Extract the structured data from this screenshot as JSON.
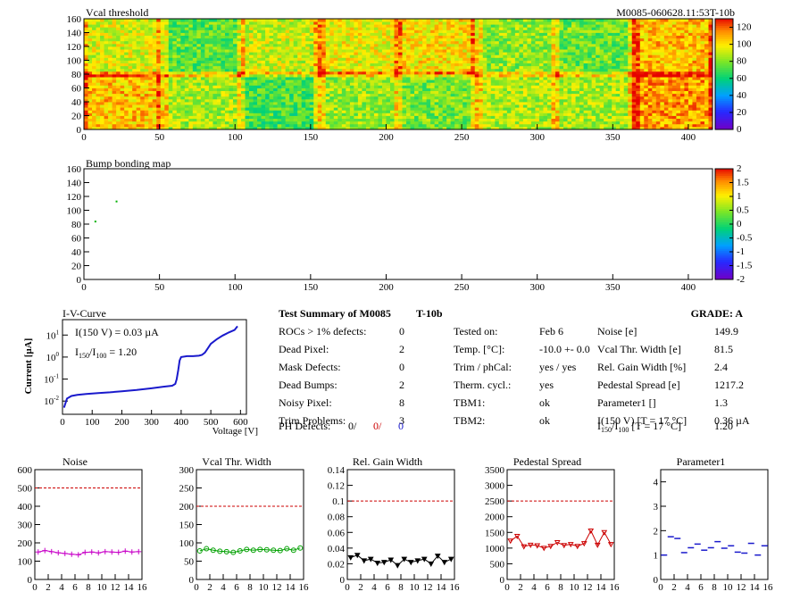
{
  "header": {
    "left": "Vcal threshold",
    "right": "M0085-060628.11:53T-10b"
  },
  "colors": {
    "blue": "#1a1acc",
    "red": "#cc0000",
    "magenta": "#c800c8",
    "green": "#00a000",
    "black": "#000000"
  },
  "chart_data": [
    {
      "id": "vcal",
      "type": "heatmap",
      "title": "Vcal threshold",
      "xlim": [
        0,
        416
      ],
      "ylim": [
        0,
        160
      ],
      "xticks": [
        "0",
        "50",
        "100",
        "150",
        "200",
        "250",
        "300",
        "350",
        "400"
      ],
      "yticks": [
        "0",
        "20",
        "40",
        "60",
        "80",
        "100",
        "120",
        "140",
        "160"
      ],
      "zticks": [
        "0",
        "20",
        "40",
        "60",
        "80",
        "100",
        "120"
      ],
      "zlim": [
        0,
        130
      ],
      "grid_rows": [
        [
          92,
          74,
          90,
          95,
          99,
          81,
          76,
          105
        ],
        [
          105,
          85,
          70,
          83,
          78,
          86,
          85,
          110
        ]
      ]
    },
    {
      "id": "bump",
      "type": "heatmap",
      "title": "Bump bonding map",
      "xlim": [
        0,
        416
      ],
      "ylim": [
        0,
        160
      ],
      "xticks": [
        "0",
        "50",
        "100",
        "150",
        "200",
        "250",
        "300",
        "350",
        "400"
      ],
      "yticks": [
        "0",
        "20",
        "40",
        "60",
        "80",
        "100",
        "120",
        "140",
        "160"
      ],
      "zticks": [
        "-2",
        "-1.5",
        "-1",
        "-0.5",
        "0",
        "0.5",
        "1",
        "1.5",
        "2"
      ],
      "zlim": [
        -2,
        2
      ],
      "points": [
        [
          21,
          114
        ],
        [
          7,
          85
        ]
      ]
    },
    {
      "id": "iv",
      "type": "line",
      "title": "I-V-Curve",
      "xlabel": "Voltage [V]",
      "ylabel": "Current [µA]",
      "xlim": [
        0,
        620
      ],
      "ylim_log10": [
        -2.6,
        1.7
      ],
      "xticks": [
        "0",
        "100",
        "200",
        "300",
        "400",
        "500",
        "600"
      ],
      "yticks_exp": [
        "-2",
        "-1",
        "0",
        "1"
      ],
      "annotation_1": "I(150 V) = 0.03 µA",
      "annotation_2": "I",
      "annotation_2_sub1": "150",
      "annotation_2_slash": "/I",
      "annotation_2_sub2": "100",
      "annotation_2_tail": " =  1.20",
      "x": [
        5,
        15,
        30,
        50,
        80,
        120,
        160,
        200,
        250,
        300,
        340,
        370,
        380,
        385,
        390,
        395,
        400,
        420,
        440,
        460,
        470,
        480,
        490,
        500,
        520,
        540,
        560,
        580,
        590
      ],
      "y": [
        0.005,
        0.013,
        0.017,
        0.019,
        0.021,
        0.023,
        0.025,
        0.028,
        0.032,
        0.038,
        0.045,
        0.05,
        0.06,
        0.1,
        0.25,
        0.7,
        1.0,
        1.1,
        1.1,
        1.15,
        1.25,
        1.6,
        2.5,
        4.0,
        6.5,
        9.5,
        13,
        17,
        25
      ]
    },
    {
      "id": "noise",
      "type": "line",
      "title": "Noise",
      "xlim": [
        0,
        16
      ],
      "ylim": [
        0,
        600
      ],
      "xticks": [
        "0",
        "2",
        "4",
        "6",
        "8",
        "10",
        "12",
        "14",
        "16"
      ],
      "yticks": [
        "0",
        "100",
        "200",
        "300",
        "400",
        "500",
        "600"
      ],
      "limit": 500,
      "values": [
        150,
        158,
        152,
        146,
        142,
        138,
        135,
        148,
        150,
        145,
        152,
        150,
        148,
        155,
        150,
        152
      ]
    },
    {
      "id": "vcalw",
      "type": "line",
      "title": "Vcal Thr. Width",
      "xlim": [
        0,
        16
      ],
      "ylim": [
        0,
        300
      ],
      "xticks": [
        "0",
        "2",
        "4",
        "6",
        "8",
        "10",
        "12",
        "14",
        "16"
      ],
      "yticks": [
        "0",
        "50",
        "100",
        "150",
        "200",
        "250",
        "300"
      ],
      "limit": 200,
      "values": [
        78,
        84,
        80,
        77,
        76,
        74,
        78,
        82,
        80,
        82,
        81,
        80,
        79,
        84,
        80,
        86
      ]
    },
    {
      "id": "gain",
      "type": "line",
      "title": "Rel. Gain Width",
      "xlim": [
        0,
        16
      ],
      "ylim": [
        0,
        0.14
      ],
      "xticks": [
        "0",
        "2",
        "4",
        "6",
        "8",
        "10",
        "12",
        "14",
        "16"
      ],
      "yticks": [
        "0",
        "0.02",
        "0.04",
        "0.06",
        "0.08",
        "0.1",
        "0.12",
        "0.14"
      ],
      "limit": 0.1,
      "values": [
        0.028,
        0.031,
        0.024,
        0.026,
        0.021,
        0.022,
        0.025,
        0.018,
        0.026,
        0.022,
        0.024,
        0.026,
        0.02,
        0.03,
        0.022,
        0.026
      ]
    },
    {
      "id": "ped",
      "type": "line",
      "title": "Pedestal Spread",
      "xlim": [
        0,
        16
      ],
      "ylim": [
        0,
        3500
      ],
      "xticks": [
        "0",
        "2",
        "4",
        "6",
        "8",
        "10",
        "12",
        "14",
        "16"
      ],
      "yticks": [
        "0",
        "500",
        "1000",
        "1500",
        "2000",
        "2500",
        "3000",
        "3500"
      ],
      "limit": 2500,
      "values": [
        1230,
        1380,
        1050,
        1100,
        1080,
        1000,
        1060,
        1180,
        1090,
        1120,
        1060,
        1150,
        1550,
        1100,
        1500,
        1120
      ]
    },
    {
      "id": "par1",
      "type": "scatter",
      "title": "Parameter1",
      "xlim": [
        0,
        16
      ],
      "ylim": [
        0,
        4.5
      ],
      "xticks": [
        "0",
        "2",
        "4",
        "6",
        "8",
        "10",
        "12",
        "14",
        "16"
      ],
      "yticks": [
        "0",
        "1",
        "2",
        "3",
        "4"
      ],
      "values": [
        1.0,
        1.75,
        1.68,
        1.1,
        1.3,
        1.45,
        1.2,
        1.3,
        1.55,
        1.28,
        1.38,
        1.12,
        1.08,
        1.48,
        1.0,
        1.38
      ]
    }
  ],
  "summary": {
    "title": "Test Summary of M0085",
    "subtitle": "T-10b",
    "grade": "GRADE:  A",
    "col1": [
      {
        "label": "ROCs > 1% defects:",
        "value": "0"
      },
      {
        "label": "Dead Pixel:",
        "value": "2"
      },
      {
        "label": "Mask Defects:",
        "value": "0"
      },
      {
        "label": "Dead Bumps:",
        "value": "2"
      },
      {
        "label": "Noisy Pixel:",
        "value": "8"
      },
      {
        "label": "Trim Problems:",
        "value": "3"
      }
    ],
    "ph_label": "PH Defects:",
    "ph_values": [
      "0/",
      "0/",
      "0"
    ],
    "col2": [
      {
        "label": "Tested on:",
        "value": "Feb 6"
      },
      {
        "label": "Temp. [°C]:",
        "value": "-10.0 +- 0.0"
      },
      {
        "label": "Trim / phCal:",
        "value": "yes / yes"
      },
      {
        "label": "Therm. cycl.:",
        "value": "yes"
      },
      {
        "label": "TBM1:",
        "value": "ok"
      },
      {
        "label": "TBM2:",
        "value": "ok"
      }
    ],
    "col3": [
      {
        "label": "Noise [e]",
        "value": "149.9"
      },
      {
        "label": "Vcal Thr. Width [e]",
        "value": "81.5"
      },
      {
        "label": "Rel. Gain Width [%]",
        "value": "2.4"
      },
      {
        "label": "Pedestal Spread [e]",
        "value": "1217.2"
      },
      {
        "label": "Parameter1 []",
        "value": "1.3"
      },
      {
        "label": "I(150 V)  [T = 17 °C]",
        "value": "0.36 µA"
      }
    ],
    "ratio_label_head": "I",
    "ratio_sub1": "150",
    "ratio_mid": "/I",
    "ratio_sub2": "100",
    "ratio_tail": "  [T = 17 °C]",
    "ratio_value": "1.20"
  }
}
